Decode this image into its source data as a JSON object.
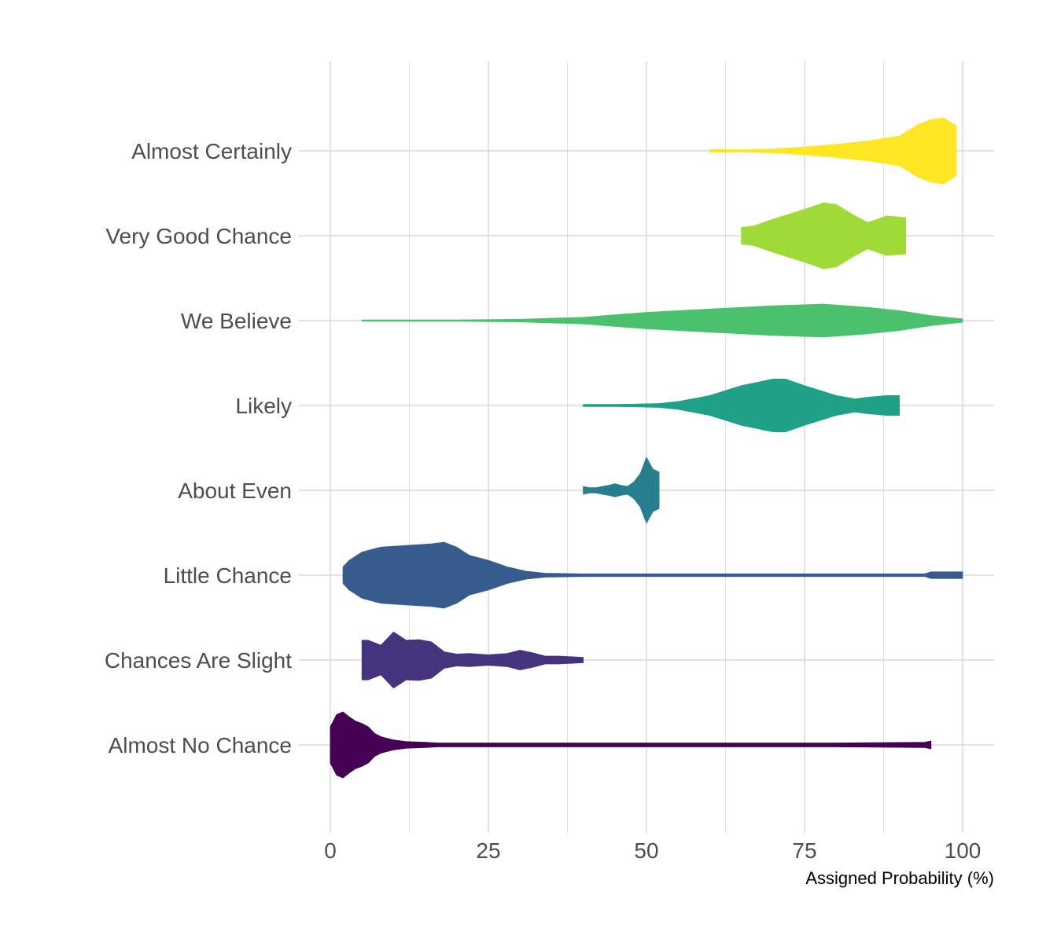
{
  "chart_data": {
    "type": "violin",
    "xlabel": "Assigned Probability (%)",
    "xlim": [
      0,
      100
    ],
    "xticks": [
      0,
      25,
      50,
      75,
      100
    ],
    "grid": true,
    "legend": "none",
    "series": [
      {
        "name": "Almost No Chance",
        "color": "#440154",
        "density": [
          [
            0,
            0.55
          ],
          [
            1,
            0.92
          ],
          [
            2,
            1.0
          ],
          [
            3,
            0.85
          ],
          [
            4,
            0.72
          ],
          [
            5,
            0.65
          ],
          [
            6,
            0.55
          ],
          [
            7,
            0.35
          ],
          [
            8,
            0.25
          ],
          [
            10,
            0.15
          ],
          [
            12,
            0.1
          ],
          [
            15,
            0.08
          ],
          [
            17,
            0.06
          ],
          [
            20,
            0.06
          ],
          [
            40,
            0.06
          ],
          [
            60,
            0.06
          ],
          [
            80,
            0.06
          ],
          [
            94,
            0.08
          ],
          [
            95,
            0.12
          ]
        ]
      },
      {
        "name": "Chances Are Slight",
        "color": "#46337e",
        "density": [
          [
            5,
            0.6
          ],
          [
            6,
            0.6
          ],
          [
            8,
            0.45
          ],
          [
            10,
            0.85
          ],
          [
            12,
            0.6
          ],
          [
            14,
            0.62
          ],
          [
            16,
            0.55
          ],
          [
            18,
            0.25
          ],
          [
            20,
            0.18
          ],
          [
            22,
            0.2
          ],
          [
            25,
            0.16
          ],
          [
            28,
            0.2
          ],
          [
            30,
            0.3
          ],
          [
            32,
            0.22
          ],
          [
            34,
            0.12
          ],
          [
            36,
            0.12
          ],
          [
            38,
            0.1
          ],
          [
            40,
            0.08
          ]
        ]
      },
      {
        "name": "Little Chance",
        "color": "#365c8d",
        "density": [
          [
            2,
            0.25
          ],
          [
            3,
            0.45
          ],
          [
            5,
            0.7
          ],
          [
            8,
            0.85
          ],
          [
            12,
            0.9
          ],
          [
            16,
            0.95
          ],
          [
            18,
            1.0
          ],
          [
            20,
            0.85
          ],
          [
            22,
            0.6
          ],
          [
            25,
            0.45
          ],
          [
            28,
            0.25
          ],
          [
            31,
            0.12
          ],
          [
            34,
            0.06
          ],
          [
            40,
            0.04
          ],
          [
            60,
            0.04
          ],
          [
            80,
            0.04
          ],
          [
            94,
            0.04
          ],
          [
            95,
            0.1
          ],
          [
            100,
            0.1
          ]
        ]
      },
      {
        "name": "About Even",
        "color": "#277f8e",
        "density": [
          [
            40,
            0.12
          ],
          [
            41,
            0.08
          ],
          [
            42,
            0.08
          ],
          [
            44,
            0.15
          ],
          [
            45,
            0.2
          ],
          [
            46,
            0.15
          ],
          [
            47,
            0.12
          ],
          [
            48,
            0.25
          ],
          [
            49,
            0.5
          ],
          [
            50,
            1.0
          ],
          [
            51,
            0.65
          ],
          [
            52,
            0.55
          ]
        ]
      },
      {
        "name": "Likely",
        "color": "#1fa187",
        "density": [
          [
            40,
            0.03
          ],
          [
            45,
            0.03
          ],
          [
            48,
            0.04
          ],
          [
            52,
            0.06
          ],
          [
            55,
            0.12
          ],
          [
            60,
            0.3
          ],
          [
            65,
            0.6
          ],
          [
            70,
            0.8
          ],
          [
            72,
            0.8
          ],
          [
            75,
            0.6
          ],
          [
            80,
            0.3
          ],
          [
            83,
            0.2
          ],
          [
            85,
            0.25
          ],
          [
            88,
            0.3
          ],
          [
            90,
            0.3
          ]
        ]
      },
      {
        "name": "We Believe",
        "color": "#4ac16d",
        "density": [
          [
            5,
            0.02
          ],
          [
            20,
            0.02
          ],
          [
            30,
            0.04
          ],
          [
            40,
            0.1
          ],
          [
            50,
            0.25
          ],
          [
            60,
            0.35
          ],
          [
            70,
            0.45
          ],
          [
            78,
            0.5
          ],
          [
            85,
            0.4
          ],
          [
            90,
            0.3
          ],
          [
            95,
            0.15
          ],
          [
            100,
            0.05
          ]
        ]
      },
      {
        "name": "Very Good Chance",
        "color": "#a0da39",
        "density": [
          [
            65,
            0.25
          ],
          [
            67,
            0.3
          ],
          [
            70,
            0.5
          ],
          [
            75,
            0.8
          ],
          [
            78,
            1.0
          ],
          [
            80,
            0.95
          ],
          [
            83,
            0.6
          ],
          [
            85,
            0.4
          ],
          [
            88,
            0.6
          ],
          [
            91,
            0.55
          ]
        ]
      },
      {
        "name": "Almost Certainly",
        "color": "#fde725",
        "density": [
          [
            60,
            0.04
          ],
          [
            63,
            0.04
          ],
          [
            65,
            0.03
          ],
          [
            70,
            0.06
          ],
          [
            75,
            0.12
          ],
          [
            80,
            0.2
          ],
          [
            85,
            0.3
          ],
          [
            90,
            0.45
          ],
          [
            93,
            0.8
          ],
          [
            95,
            0.95
          ],
          [
            97,
            1.0
          ],
          [
            99,
            0.75
          ]
        ]
      }
    ]
  }
}
